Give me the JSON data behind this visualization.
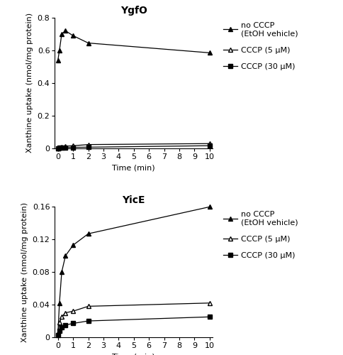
{
  "ygfo": {
    "title": "YgfO",
    "no_cccp_x": [
      0,
      0.1,
      0.25,
      0.5,
      1.0,
      2.0,
      10.0
    ],
    "no_cccp_y": [
      0.54,
      0.6,
      0.7,
      0.72,
      0.69,
      0.645,
      0.585
    ],
    "cccp5_x": [
      0,
      0.1,
      0.25,
      0.5,
      1.0,
      2.0,
      10.0
    ],
    "cccp5_y": [
      0.0,
      0.005,
      0.008,
      0.012,
      0.015,
      0.022,
      0.028
    ],
    "cccp30_x": [
      0,
      0.1,
      0.25,
      0.5,
      1.0,
      2.0,
      10.0
    ],
    "cccp30_y": [
      0.0,
      0.002,
      0.003,
      0.004,
      0.005,
      0.006,
      0.015
    ],
    "ylim": [
      0,
      0.8
    ],
    "yticks": [
      0.0,
      0.2,
      0.4,
      0.6,
      0.8
    ],
    "ytick_labels": [
      "0",
      "0.2",
      "0.4",
      "0.6",
      "0.8"
    ],
    "ylabel": "Xanthine uptake (nmol/mg protein)"
  },
  "yice": {
    "title": "YicE",
    "no_cccp_x": [
      0,
      0.1,
      0.25,
      0.5,
      1.0,
      2.0,
      10.0
    ],
    "no_cccp_y": [
      0.005,
      0.042,
      0.08,
      0.1,
      0.113,
      0.127,
      0.16
    ],
    "cccp5_x": [
      0,
      0.1,
      0.25,
      0.5,
      1.0,
      2.0,
      10.0
    ],
    "cccp5_y": [
      0.005,
      0.018,
      0.025,
      0.03,
      0.032,
      0.038,
      0.042
    ],
    "cccp30_x": [
      0,
      0.1,
      0.25,
      0.5,
      1.0,
      2.0,
      10.0
    ],
    "cccp30_y": [
      0.003,
      0.008,
      0.012,
      0.015,
      0.017,
      0.02,
      0.025
    ],
    "ylim": [
      0,
      0.16
    ],
    "yticks": [
      0.0,
      0.04,
      0.08,
      0.12,
      0.16
    ],
    "ytick_labels": [
      "0",
      "0.04",
      "0.08",
      "0.12",
      "0.16"
    ],
    "ylabel": "Xanthine uptake (nmol/mg protein)"
  },
  "xlabel": "Time (min)",
  "xticks": [
    0,
    1,
    2,
    3,
    4,
    5,
    6,
    7,
    8,
    9,
    10
  ],
  "xtick_labels": [
    "0",
    "1",
    "2",
    "3",
    "4",
    "5",
    "6",
    "7",
    "8",
    "9",
    "10"
  ],
  "legend_label_0": "no CCCP\n(EtOH vehicle)",
  "legend_label_1": "CCCP (5 μM)",
  "legend_label_2": "CCCP (30 μM)",
  "line_color": "#000000",
  "bg_color": "#ffffff",
  "marker_size": 5,
  "linewidth": 0.9,
  "tick_fontsize": 8,
  "label_fontsize": 8,
  "title_fontsize": 10,
  "legend_fontsize": 8
}
